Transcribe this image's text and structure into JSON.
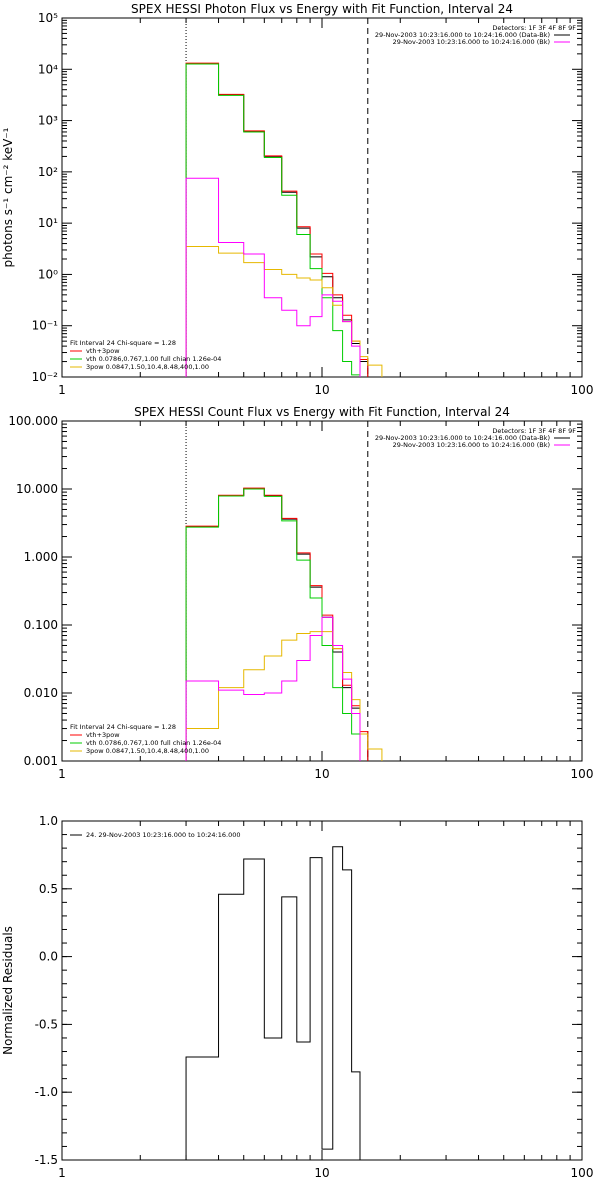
{
  "chart_data": [
    {
      "type": "line",
      "title": "SPEX HESSI Photon Flux vs Energy with Fit Function, Interval 24",
      "ylabel": "photons s⁻¹ cm⁻² keV⁻¹",
      "xlabel": "",
      "xscale": "log",
      "yscale": "log",
      "xlim": [
        1,
        100
      ],
      "ylim": [
        0.01,
        100000
      ],
      "xticks": [
        1,
        10,
        100
      ],
      "xtick_labels": [
        "1",
        "10",
        "100"
      ],
      "yticks": [
        0.01,
        0.1,
        1,
        10,
        100,
        1000,
        10000,
        100000
      ],
      "ytick_labels": [
        "10⁻²",
        "10⁻¹",
        "10⁰",
        "10¹",
        "10²",
        "10³",
        "10⁴",
        "10⁵"
      ],
      "vlines": [
        {
          "x": 3,
          "style": "dotted"
        },
        {
          "x": 15,
          "style": "dashed"
        }
      ],
      "legend_right": [
        "Detectors: 1F 3F 4F 8F 9F",
        "29-Nov-2003 10:23:16.000 to 10:24:16.000 (Data-Bk)",
        "29-Nov-2003 10:23:16.000 to 10:24:16.000 (Bk)"
      ],
      "legend_right_colors": [
        "#000000",
        "#ff00ff"
      ],
      "legend_left": [
        "Fit Interval 24   Chi-square = 1.28",
        "vth+3pow",
        "vth 0.0786,0.767,1.00  full chian 1.26e-04",
        "3pow 0.0847,1.50,10.4,8.48,400,1.00"
      ],
      "legend_left_colors": [
        "#ff0000",
        "#00cc00",
        "#e6b800"
      ],
      "edges": [
        3,
        4,
        5,
        6,
        7,
        8,
        9,
        10,
        11,
        12,
        13,
        14,
        15,
        17
      ],
      "series": [
        {
          "color": "#000000",
          "values": [
            13000,
            3200,
            620,
            200,
            40,
            8,
            2.2,
            0.9,
            0.35,
            0.13,
            0.045,
            0.02,
            null
          ]
        },
        {
          "color": "#ff0000",
          "values": [
            13200,
            3250,
            630,
            205,
            42,
            8.5,
            2.5,
            1.05,
            0.4,
            0.16,
            0.05,
            0.022,
            null
          ]
        },
        {
          "color": "#00cc00",
          "values": [
            12700,
            3100,
            600,
            190,
            35,
            6,
            1.3,
            0.35,
            0.08,
            0.02,
            0.011,
            null,
            null
          ]
        },
        {
          "color": "#e6b800",
          "values": [
            3.5,
            2.6,
            1.7,
            1.25,
            1.0,
            0.85,
            0.78,
            0.55,
            0.25,
            0.12,
            0.05,
            0.025,
            0.017
          ]
        },
        {
          "color": "#ff00ff",
          "values": [
            75,
            4.2,
            2.5,
            0.35,
            0.2,
            0.1,
            0.15,
            0.4,
            0.3,
            0.12,
            0.04,
            null,
            null
          ]
        }
      ]
    },
    {
      "type": "line",
      "title": "SPEX HESSI Count Flux vs Energy with Fit Function, Interval 24",
      "xscale": "log",
      "yscale": "log",
      "xlim": [
        1,
        100
      ],
      "ylim": [
        0.001,
        100
      ],
      "xticks": [
        1,
        10,
        100
      ],
      "xtick_labels": [
        "1",
        "10",
        "100"
      ],
      "yticks": [
        0.001,
        0.01,
        0.1,
        1,
        10,
        100
      ],
      "ytick_labels": [
        "0.001",
        "0.010",
        "0.100",
        "1.000",
        "10.000",
        "100.000"
      ],
      "vlines": [
        {
          "x": 3,
          "style": "dotted"
        },
        {
          "x": 15,
          "style": "dashed"
        }
      ],
      "legend_right": [
        "Detectors: 1F 3F 4F 8F 9F",
        "29-Nov-2003 10:23:16.000 to 10:24:16.000 (Data-Bk)",
        "29-Nov-2003 10:23:16.000 to 10:24:16.000 (Bk)"
      ],
      "legend_right_colors": [
        "#000000",
        "#ff00ff"
      ],
      "legend_left": [
        "Fit Interval 24   Chi-square = 1.28",
        "vth+3pow",
        "vth 0.0786,0.767,1.00  full chian 1.26e-04",
        "3pow 0.0847,1.50,10.4,8.48,400,1.00"
      ],
      "legend_left_colors": [
        "#ff0000",
        "#00cc00",
        "#e6b800"
      ],
      "edges": [
        3,
        4,
        5,
        6,
        7,
        8,
        9,
        10,
        11,
        12,
        13,
        14,
        15,
        17
      ],
      "series": [
        {
          "color": "#000000",
          "values": [
            2.8,
            8.0,
            10.2,
            8.0,
            3.6,
            1.1,
            0.36,
            0.13,
            0.04,
            0.012,
            0.006,
            0.0025,
            null
          ]
        },
        {
          "color": "#ff0000",
          "values": [
            2.85,
            8.1,
            10.3,
            8.1,
            3.7,
            1.15,
            0.38,
            0.14,
            0.045,
            0.013,
            0.0065,
            0.0027,
            null
          ]
        },
        {
          "color": "#00cc00",
          "values": [
            2.75,
            7.9,
            10.0,
            7.8,
            3.4,
            0.9,
            0.25,
            0.05,
            0.012,
            0.005,
            0.0025,
            null,
            null
          ]
        },
        {
          "color": "#e6b800",
          "values": [
            0.003,
            0.012,
            0.022,
            0.035,
            0.06,
            0.075,
            0.08,
            0.08,
            0.045,
            0.02,
            0.008,
            0.0025,
            0.0015
          ]
        },
        {
          "color": "#ff00ff",
          "values": [
            0.015,
            0.011,
            0.0095,
            0.01,
            0.015,
            0.03,
            0.07,
            0.13,
            0.05,
            0.016,
            0.005,
            null,
            null
          ]
        }
      ]
    },
    {
      "type": "line",
      "title": "",
      "ylabel": "Normalized Residuals",
      "xscale": "log",
      "yscale": "linear",
      "xlim": [
        1,
        100
      ],
      "ylim": [
        -1.5,
        1.0
      ],
      "xticks": [
        1,
        10,
        100
      ],
      "xtick_labels": [
        "1",
        "10",
        "100"
      ],
      "yticks": [
        -1.5,
        -1.0,
        -0.5,
        0.0,
        0.5,
        1.0
      ],
      "ytick_labels": [
        "-1.5",
        "-1.0",
        "-0.5",
        "0.0",
        "0.5",
        "1.0"
      ],
      "legend_left": [
        "24. 29-Nov-2003 10:23:16.000 to 10:24:16.000"
      ],
      "edges": [
        3,
        4,
        5,
        6,
        7,
        8,
        9,
        10,
        11,
        12,
        13,
        14,
        15
      ],
      "series": [
        {
          "color": "#000000",
          "values": [
            -0.74,
            0.46,
            0.72,
            -0.6,
            0.44,
            -0.63,
            0.73,
            -1.42,
            0.81,
            0.64,
            -0.85,
            null
          ]
        }
      ],
      "baseline": -1.5
    }
  ]
}
